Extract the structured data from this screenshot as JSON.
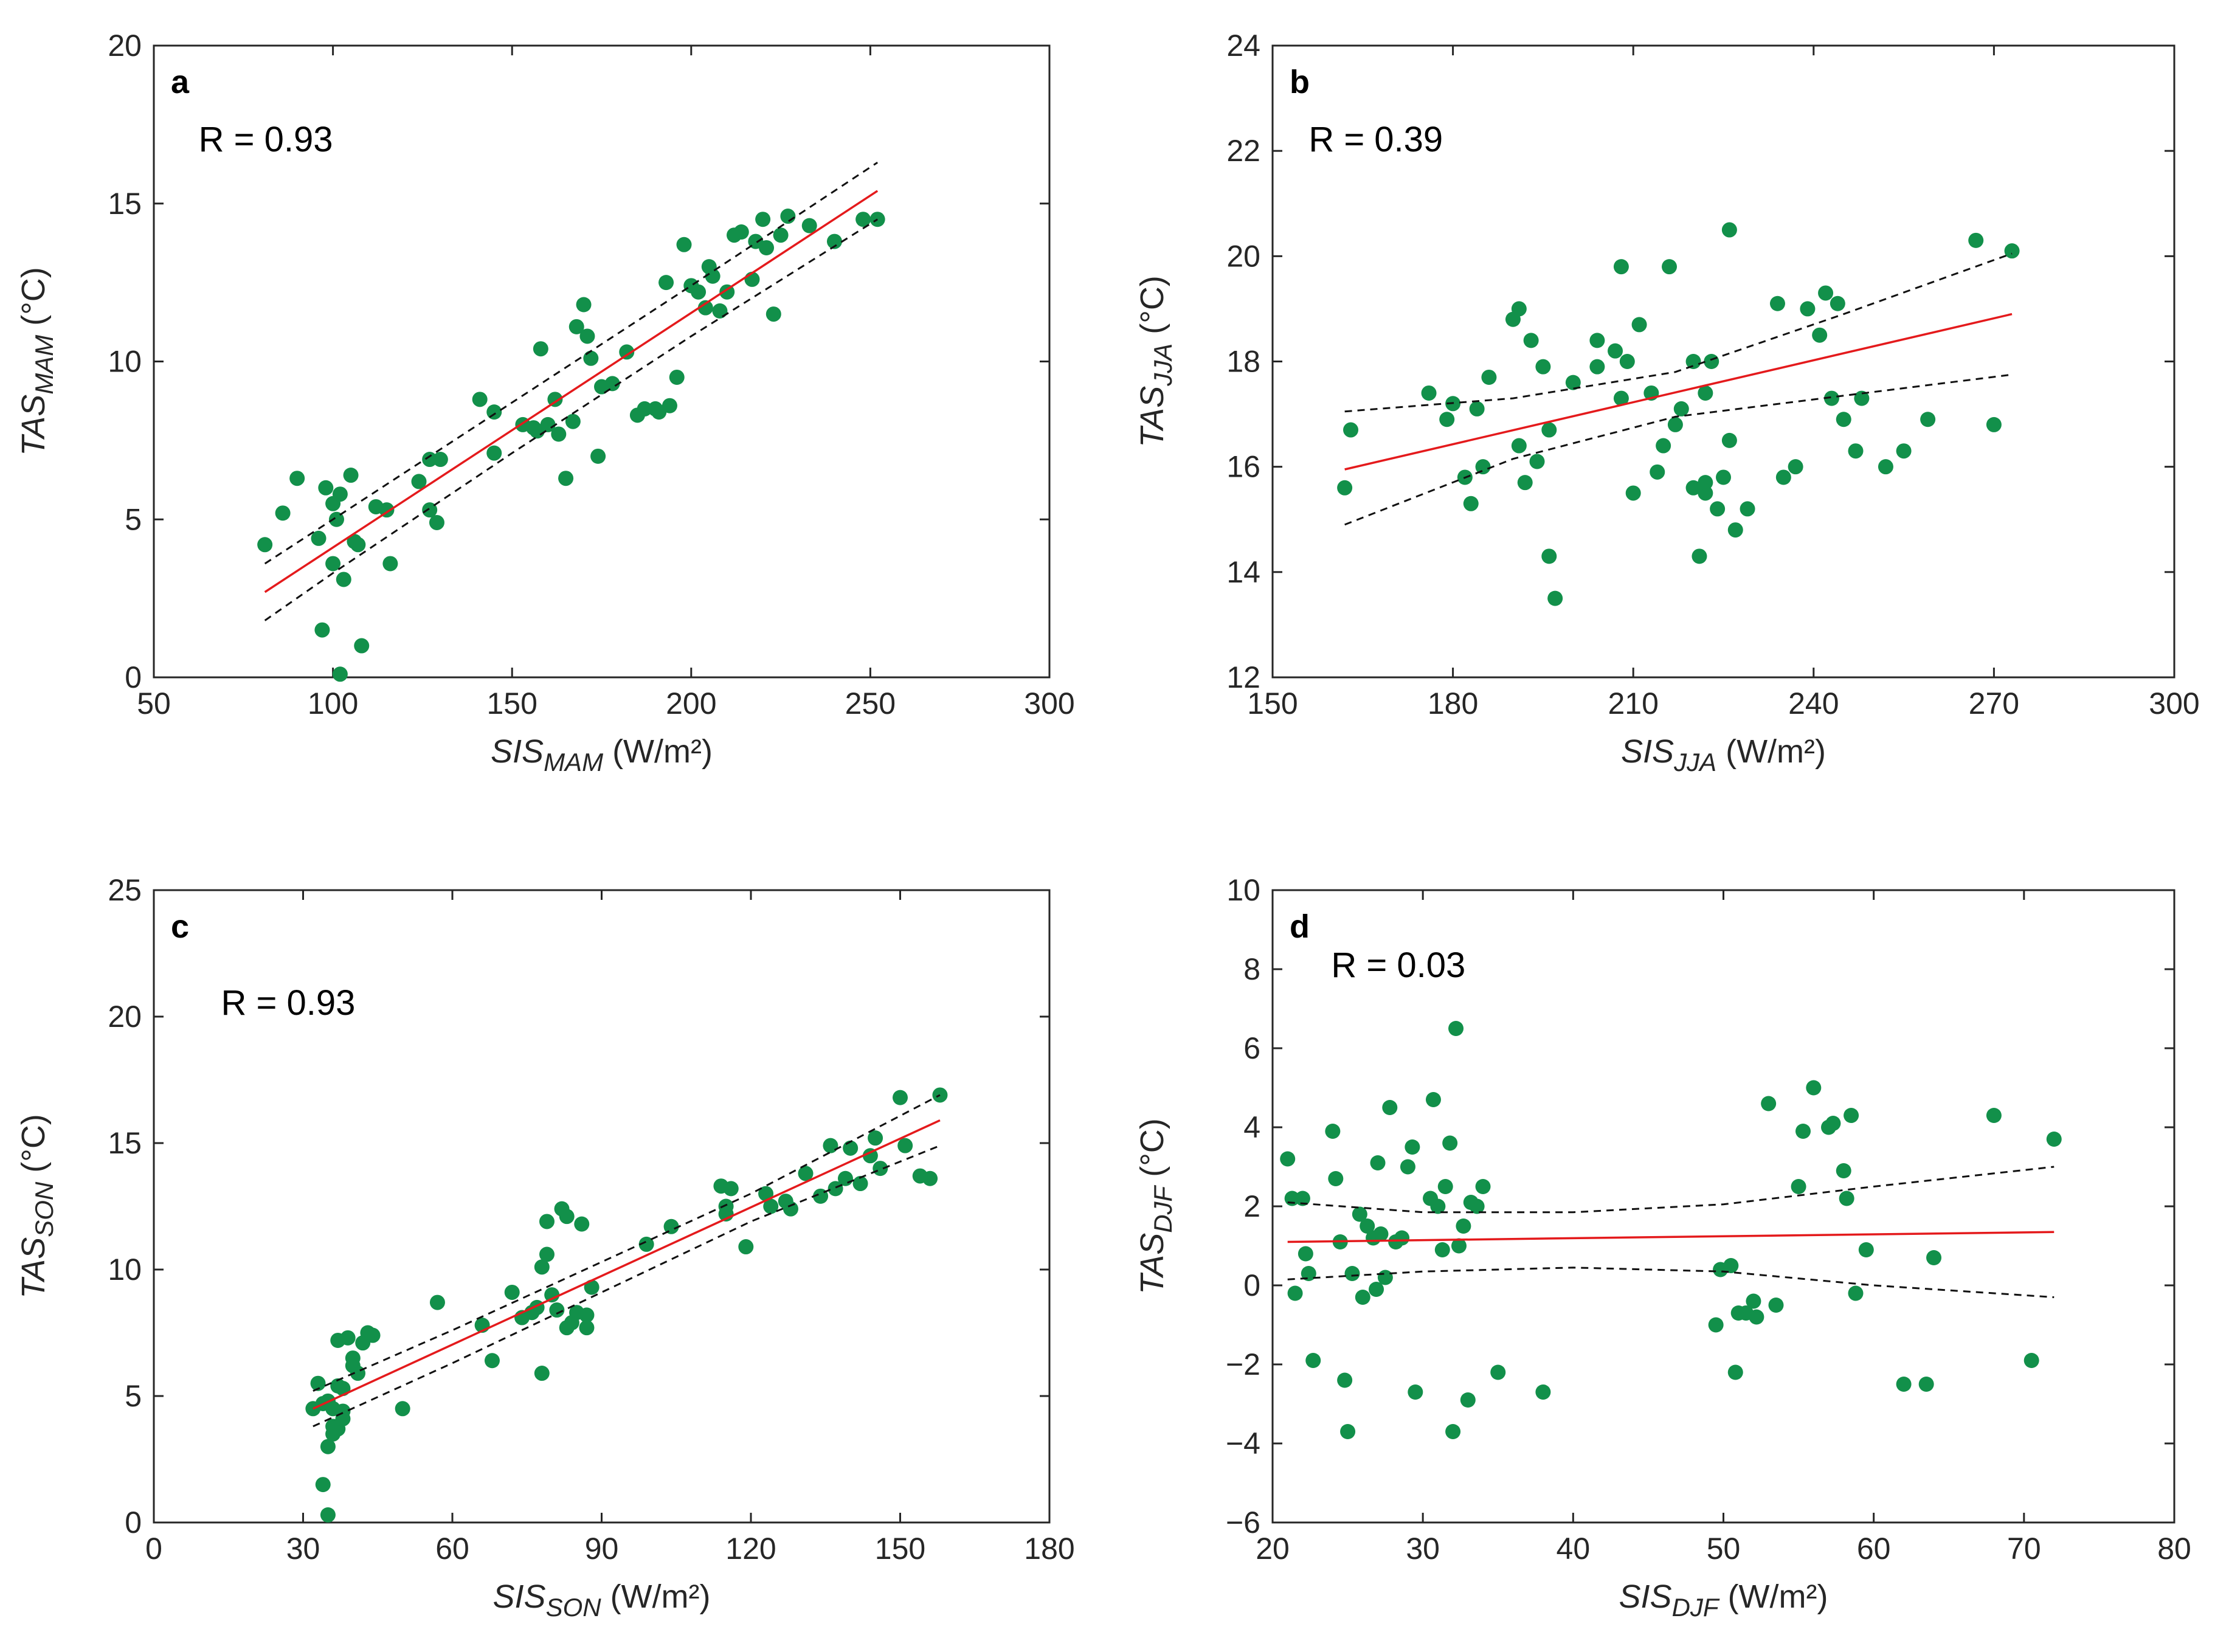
{
  "colors": {
    "points": "#12904a",
    "fit": "#e41a1c",
    "ci": "#111111",
    "axis": "#262626"
  },
  "chart_data": [
    {
      "type": "scatter",
      "panel": "a",
      "r_text": "R = 0.93",
      "xlabel": {
        "var": "SIS",
        "sub": "MAM",
        "unit": " (W/m²)"
      },
      "ylabel": {
        "var": "TAS",
        "sub": "MAM",
        "unit": " (°C)"
      },
      "xlim": [
        50,
        300
      ],
      "ylim": [
        0,
        20
      ],
      "xticks": [
        50,
        100,
        150,
        200,
        250,
        300
      ],
      "yticks": [
        0,
        5,
        10,
        15,
        20
      ],
      "x": [
        81,
        86,
        90,
        96,
        97,
        98,
        100,
        100,
        101,
        102,
        102,
        103,
        105,
        106,
        107,
        108,
        112,
        115,
        116,
        124,
        127,
        127,
        129,
        130,
        141,
        145,
        145,
        153,
        156,
        157,
        158,
        160,
        162,
        163,
        165,
        167,
        168,
        170,
        171,
        172,
        174,
        175,
        178,
        182,
        185,
        187,
        190,
        191,
        193,
        194,
        196,
        198,
        200,
        202,
        204,
        205,
        206,
        208,
        210,
        212,
        214,
        217,
        218,
        220,
        221,
        223,
        225,
        227,
        233,
        240,
        248,
        252
      ],
      "y": [
        4.2,
        5.2,
        6.3,
        4.4,
        1.5,
        6.0,
        3.6,
        5.5,
        5.0,
        5.8,
        0.1,
        3.1,
        6.4,
        4.3,
        4.2,
        1.0,
        5.4,
        5.3,
        3.6,
        6.2,
        6.9,
        5.3,
        4.9,
        6.9,
        8.8,
        8.4,
        7.1,
        8.0,
        7.9,
        7.8,
        10.4,
        8.0,
        8.8,
        7.7,
        6.3,
        8.1,
        11.1,
        11.8,
        10.8,
        10.1,
        7.0,
        9.2,
        9.3,
        10.3,
        8.3,
        8.5,
        8.5,
        8.4,
        12.5,
        8.6,
        9.5,
        13.7,
        12.4,
        12.2,
        11.7,
        13.0,
        12.7,
        11.6,
        12.2,
        14.0,
        14.1,
        12.6,
        13.8,
        14.5,
        13.6,
        11.5,
        14.0,
        14.6,
        14.3,
        13.8,
        14.5,
        14.5
      ],
      "fit": {
        "x": [
          81,
          252
        ],
        "y": [
          2.7,
          15.4
        ]
      },
      "ci_upper": {
        "x": [
          81,
          100,
          150,
          200,
          252
        ],
        "y": [
          3.6,
          5.0,
          8.7,
          12.4,
          16.3
        ]
      },
      "ci_lower": {
        "x": [
          81,
          100,
          150,
          200,
          252
        ],
        "y": [
          1.8,
          3.3,
          7.1,
          10.8,
          14.5
        ]
      }
    },
    {
      "type": "scatter",
      "panel": "b",
      "r_text": "R = 0.39",
      "xlabel": {
        "var": "SIS",
        "sub": "JJA",
        "unit": " (W/m²)"
      },
      "ylabel": {
        "var": "TAS",
        "sub": "JJA",
        "unit": " (°C)"
      },
      "xlim": [
        150,
        300
      ],
      "ylim": [
        12,
        24
      ],
      "xticks": [
        150,
        180,
        210,
        240,
        270,
        300
      ],
      "yticks": [
        12,
        14,
        16,
        18,
        20,
        22,
        24
      ],
      "x": [
        162,
        163,
        176,
        179,
        180,
        182,
        183,
        184,
        185,
        186,
        190,
        191,
        191,
        192,
        193,
        194,
        195,
        196,
        196,
        197,
        200,
        204,
        204,
        207,
        208,
        208,
        209,
        210,
        211,
        213,
        214,
        215,
        216,
        217,
        218,
        220,
        220,
        221,
        222,
        222,
        222,
        223,
        224,
        225,
        226,
        226,
        227,
        229,
        234,
        235,
        237,
        239,
        241,
        242,
        243,
        244,
        245,
        247,
        248,
        252,
        255,
        259,
        267,
        270,
        273
      ],
      "y": [
        15.6,
        16.7,
        17.4,
        16.9,
        17.2,
        15.8,
        15.3,
        17.1,
        16.0,
        17.7,
        18.8,
        19.0,
        16.4,
        15.7,
        18.4,
        16.1,
        17.9,
        16.7,
        14.3,
        13.5,
        17.6,
        18.4,
        17.9,
        18.2,
        17.3,
        19.8,
        18.0,
        15.5,
        18.7,
        17.4,
        15.9,
        16.4,
        19.8,
        16.8,
        17.1,
        15.6,
        18.0,
        14.3,
        15.5,
        17.4,
        15.7,
        18.0,
        15.2,
        15.8,
        20.5,
        16.5,
        14.8,
        15.2,
        19.1,
        15.8,
        16.0,
        19.0,
        18.5,
        19.3,
        17.3,
        19.1,
        16.9,
        16.3,
        17.3,
        16.0,
        16.3,
        16.9,
        20.3,
        16.8,
        20.1
      ],
      "fit": {
        "x": [
          162,
          273
        ],
        "y": [
          15.95,
          18.9
        ]
      },
      "ci_upper": {
        "x": [
          162,
          190,
          217,
          245,
          273
        ],
        "y": [
          17.05,
          17.3,
          17.8,
          18.9,
          20.05
        ]
      },
      "ci_lower": {
        "x": [
          162,
          190,
          217,
          245,
          273
        ],
        "y": [
          14.9,
          16.15,
          16.95,
          17.35,
          17.75
        ]
      }
    },
    {
      "type": "scatter",
      "panel": "c",
      "r_text": "R = 0.93",
      "xlabel": {
        "var": "SIS",
        "sub": "SON",
        "unit": " (W/m²)"
      },
      "ylabel": {
        "var": "TAS",
        "sub": "SON",
        "unit": " (°C)"
      },
      "xlim": [
        0,
        180
      ],
      "ylim": [
        0,
        25
      ],
      "xticks": [
        0,
        30,
        60,
        90,
        120,
        150,
        180
      ],
      "yticks": [
        0,
        5,
        10,
        15,
        20,
        25
      ],
      "x": [
        32,
        33,
        34,
        34,
        35,
        35,
        35,
        36,
        36,
        36,
        37,
        37,
        37,
        38,
        38,
        38,
        39,
        40,
        40,
        41,
        42,
        43,
        44,
        50,
        57,
        66,
        68,
        72,
        74,
        76,
        77,
        78,
        78,
        79,
        79,
        80,
        81,
        82,
        83,
        83,
        84,
        85,
        86,
        87,
        87,
        88,
        99,
        104,
        114,
        115,
        115,
        116,
        119,
        123,
        124,
        127,
        128,
        131,
        134,
        136,
        137,
        139,
        140,
        142,
        144,
        145,
        146,
        150,
        151,
        154,
        156,
        158
      ],
      "y": [
        4.5,
        5.5,
        1.5,
        4.7,
        0.3,
        3.0,
        4.8,
        3.5,
        3.8,
        4.5,
        7.2,
        5.4,
        3.7,
        4.4,
        5.3,
        4.1,
        7.3,
        6.5,
        6.2,
        5.9,
        7.1,
        7.5,
        7.4,
        4.5,
        8.7,
        7.8,
        6.4,
        9.1,
        8.1,
        8.3,
        8.5,
        5.9,
        10.1,
        10.6,
        11.9,
        9.0,
        8.4,
        12.4,
        7.7,
        12.1,
        7.9,
        8.3,
        11.8,
        8.2,
        7.7,
        9.3,
        11.0,
        11.7,
        13.3,
        12.5,
        12.2,
        13.2,
        10.9,
        13.0,
        12.5,
        12.7,
        12.4,
        13.8,
        12.9,
        14.9,
        13.2,
        13.6,
        14.8,
        13.4,
        14.5,
        15.2,
        14.0,
        16.8,
        14.9,
        13.7,
        13.6,
        16.9
      ],
      "fit": {
        "x": [
          32,
          158
        ],
        "y": [
          4.5,
          15.9
        ]
      },
      "ci_upper": {
        "x": [
          32,
          60,
          90,
          120,
          158
        ],
        "y": [
          5.2,
          7.6,
          10.3,
          13.0,
          16.9
        ]
      },
      "ci_lower": {
        "x": [
          32,
          60,
          90,
          120,
          158
        ],
        "y": [
          3.8,
          6.3,
          9.1,
          11.9,
          14.9
        ]
      }
    },
    {
      "type": "scatter",
      "panel": "d",
      "r_text": "R = 0.03",
      "xlabel": {
        "var": "SIS",
        "sub": "DJF",
        "unit": " (W/m²)"
      },
      "ylabel": {
        "var": "TAS",
        "sub": "DJF",
        "unit": " (°C)"
      },
      "xlim": [
        20,
        80
      ],
      "ylim": [
        -6,
        10
      ],
      "xticks": [
        20,
        30,
        40,
        50,
        60,
        70,
        80
      ],
      "yticks": [
        -6,
        -4,
        -2,
        0,
        2,
        4,
        6,
        8,
        10
      ],
      "x": [
        21.0,
        21.3,
        21.5,
        22.0,
        22.2,
        22.4,
        22.7,
        24.0,
        24.2,
        24.5,
        24.8,
        25.0,
        25.3,
        25.8,
        26.0,
        26.3,
        26.7,
        26.9,
        27.0,
        27.2,
        27.5,
        27.8,
        28.2,
        28.6,
        29.0,
        29.3,
        29.5,
        30.5,
        30.7,
        31.0,
        31.3,
        31.5,
        31.8,
        32.0,
        32.2,
        32.4,
        32.7,
        33.0,
        33.2,
        33.6,
        34.0,
        35.0,
        38.0,
        49.5,
        49.8,
        50.5,
        50.8,
        51.0,
        51.5,
        52.0,
        52.2,
        53.0,
        53.5,
        55.0,
        55.3,
        56.0,
        57.0,
        57.3,
        58.0,
        58.2,
        58.5,
        58.8,
        59.5,
        62.0,
        63.5,
        64.0,
        68.0,
        70.5,
        72.0
      ],
      "y": [
        3.2,
        2.2,
        -0.2,
        2.2,
        0.8,
        0.3,
        -1.9,
        3.9,
        2.7,
        1.1,
        -2.4,
        -3.7,
        0.3,
        1.8,
        -0.3,
        1.5,
        1.2,
        -0.1,
        3.1,
        1.3,
        0.2,
        4.5,
        1.1,
        1.2,
        3.0,
        3.5,
        -2.7,
        2.2,
        4.7,
        2.0,
        0.9,
        2.5,
        3.6,
        -3.7,
        6.5,
        1.0,
        1.5,
        -2.9,
        2.1,
        2.0,
        2.5,
        -2.2,
        -2.7,
        -1.0,
        0.4,
        0.5,
        -2.2,
        -0.7,
        -0.7,
        -0.4,
        -0.8,
        4.6,
        -0.5,
        2.5,
        3.9,
        5.0,
        4.0,
        4.1,
        2.9,
        2.2,
        4.3,
        -0.2,
        0.9,
        -2.5,
        -2.5,
        0.7,
        4.3,
        -1.9,
        3.7
      ],
      "fit": {
        "x": [
          21,
          72
        ],
        "y": [
          1.1,
          1.35
        ]
      },
      "ci_upper": {
        "x": [
          21,
          30,
          40,
          50,
          60,
          72
        ],
        "y": [
          2.1,
          1.85,
          1.85,
          2.05,
          2.5,
          3.0
        ]
      },
      "ci_lower": {
        "x": [
          21,
          30,
          40,
          50,
          60,
          72
        ],
        "y": [
          0.15,
          0.35,
          0.45,
          0.35,
          0.0,
          -0.3
        ]
      }
    }
  ]
}
